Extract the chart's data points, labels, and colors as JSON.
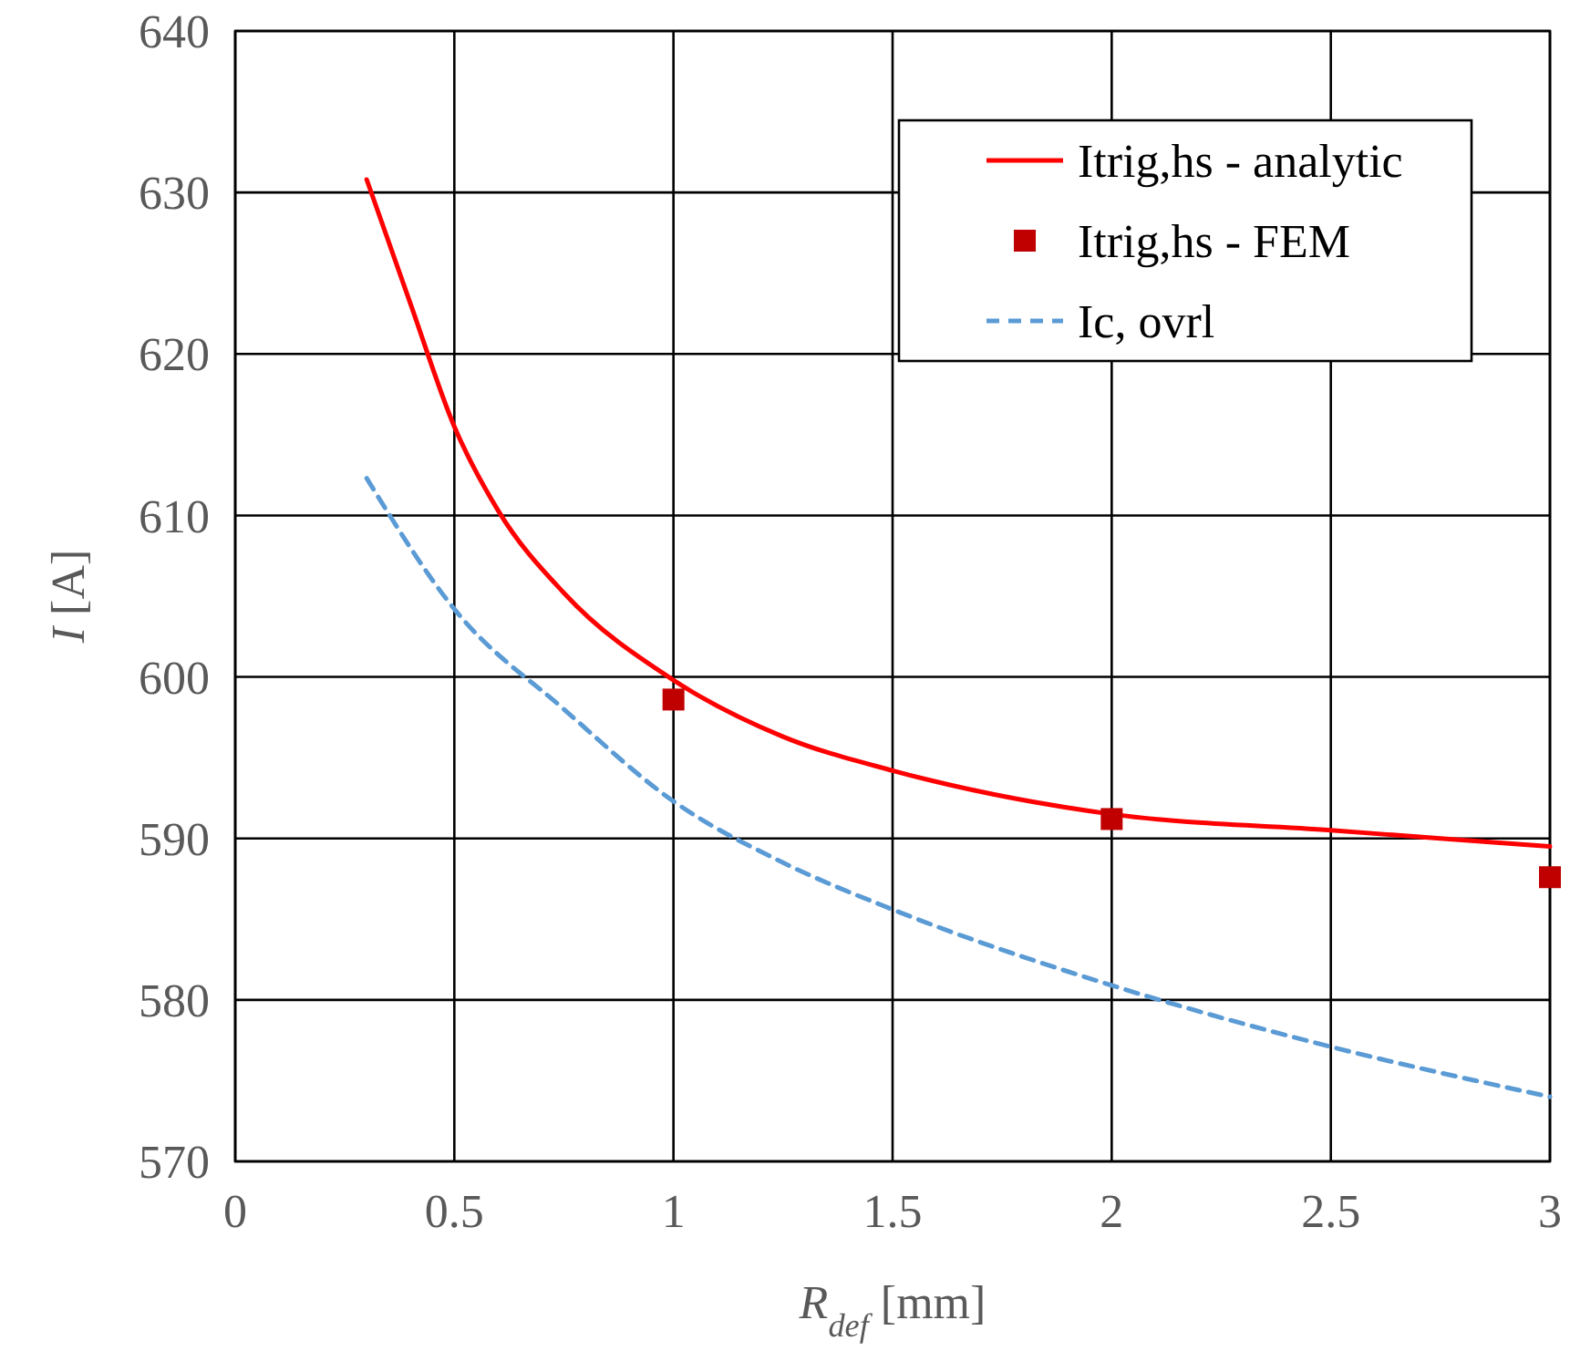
{
  "chart_data": {
    "type": "line",
    "xlabel": "R$_{def}$ [mm]",
    "ylabel": "I [A]",
    "xlim": [
      0,
      3
    ],
    "xticks": [
      0,
      0.5,
      1,
      1.5,
      2,
      2.5,
      3
    ],
    "ylim": [
      570,
      640
    ],
    "yticks": [
      570,
      580,
      590,
      600,
      610,
      620,
      630,
      640
    ],
    "grid": true,
    "legend": "top right",
    "series": [
      {
        "name": "Itrig,hs - analytic",
        "color": "#ff0000",
        "line_style": "solid",
        "marker": "none",
        "x": [
          0.3,
          0.4,
          0.5,
          0.6,
          0.75,
          1.0,
          1.25,
          1.5,
          2.0,
          2.5,
          2.75,
          3.0
        ],
        "values": [
          630.8,
          623.1,
          615.5,
          610.3,
          605.2,
          599.8,
          596.3,
          594.2,
          591.5,
          590.5,
          590.0,
          589.5
        ]
      },
      {
        "name": "Itrig,hs - FEM",
        "type": "scatter",
        "color": "#c00000",
        "marker": "square",
        "x": [
          1,
          2,
          3
        ],
        "values": [
          598.6,
          591.2,
          587.6
        ]
      },
      {
        "name": "Ic, ovrl",
        "color": "#5b9bd5",
        "line_style": "dashed",
        "marker": "none",
        "x": [
          0.3,
          0.5,
          0.75,
          1.0,
          1.25,
          1.5,
          2.0,
          2.5,
          3.0
        ],
        "values": [
          612.3,
          604.2,
          598,
          592.3,
          588.5,
          585.6,
          580.9,
          577.1,
          574.0
        ]
      }
    ]
  }
}
